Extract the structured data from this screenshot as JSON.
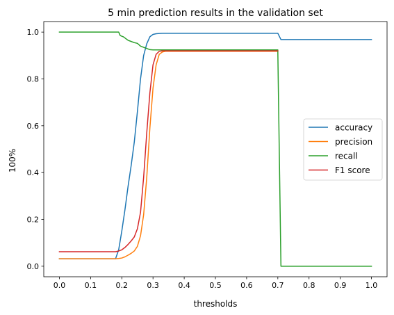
{
  "chart_data": {
    "type": "line",
    "title": "5 min prediction results in the validation set",
    "xlabel": "thresholds",
    "ylabel": "100%",
    "xlim": [
      -0.05,
      1.05
    ],
    "ylim": [
      -0.045,
      1.045
    ],
    "xticks": [
      0.0,
      0.1,
      0.2,
      0.3,
      0.4,
      0.5,
      0.6,
      0.7,
      0.8,
      0.9,
      1.0
    ],
    "xtick_labels": [
      "0.0",
      "0.1",
      "0.2",
      "0.3",
      "0.4",
      "0.5",
      "0.6",
      "0.7",
      "0.8",
      "0.9",
      "1.0"
    ],
    "yticks": [
      0.0,
      0.2,
      0.4,
      0.6,
      0.8,
      1.0
    ],
    "ytick_labels": [
      "0.0",
      "0.2",
      "0.4",
      "0.6",
      "0.8",
      "1.0"
    ],
    "grid": false,
    "legend_position": "center-right",
    "series": [
      {
        "name": "accuracy",
        "color": "#1f77b4",
        "x": [
          0.0,
          0.18,
          0.19,
          0.2,
          0.21,
          0.22,
          0.23,
          0.24,
          0.25,
          0.26,
          0.27,
          0.28,
          0.29,
          0.3,
          0.31,
          0.32,
          0.33,
          0.35,
          0.4,
          0.5,
          0.6,
          0.7,
          0.71,
          0.8,
          0.9,
          1.0
        ],
        "y": [
          0.032,
          0.032,
          0.07,
          0.15,
          0.24,
          0.34,
          0.43,
          0.53,
          0.66,
          0.8,
          0.9,
          0.95,
          0.98,
          0.99,
          0.993,
          0.994,
          0.995,
          0.995,
          0.995,
          0.995,
          0.995,
          0.995,
          0.968,
          0.968,
          0.968,
          0.968
        ]
      },
      {
        "name": "precision",
        "color": "#ff7f0e",
        "x": [
          0.0,
          0.18,
          0.19,
          0.2,
          0.21,
          0.22,
          0.23,
          0.24,
          0.25,
          0.26,
          0.27,
          0.28,
          0.29,
          0.3,
          0.31,
          0.32,
          0.33,
          0.34,
          0.35,
          0.4,
          0.5,
          0.6,
          0.7
        ],
        "y": [
          0.032,
          0.032,
          0.033,
          0.035,
          0.04,
          0.047,
          0.055,
          0.065,
          0.085,
          0.13,
          0.22,
          0.38,
          0.59,
          0.76,
          0.86,
          0.905,
          0.915,
          0.918,
          0.918,
          0.918,
          0.918,
          0.918,
          0.918
        ]
      },
      {
        "name": "recall",
        "color": "#2ca02c",
        "x": [
          0.0,
          0.19,
          0.195,
          0.205,
          0.21,
          0.215,
          0.22,
          0.23,
          0.24,
          0.25,
          0.26,
          0.27,
          0.28,
          0.29,
          0.3,
          0.4,
          0.5,
          0.6,
          0.7,
          0.7,
          0.71,
          0.8,
          0.9,
          1.0
        ],
        "y": [
          1.0,
          1.0,
          0.985,
          0.98,
          0.975,
          0.97,
          0.965,
          0.96,
          0.955,
          0.952,
          0.94,
          0.935,
          0.93,
          0.925,
          0.924,
          0.924,
          0.924,
          0.924,
          0.924,
          0.915,
          0.0,
          0.0,
          0.0,
          0.0
        ]
      },
      {
        "name": "F1 score",
        "color": "#d62728",
        "x": [
          0.0,
          0.18,
          0.19,
          0.2,
          0.21,
          0.22,
          0.23,
          0.24,
          0.25,
          0.26,
          0.27,
          0.28,
          0.29,
          0.3,
          0.31,
          0.32,
          0.33,
          0.35,
          0.4,
          0.5,
          0.6,
          0.7
        ],
        "y": [
          0.062,
          0.062,
          0.065,
          0.07,
          0.08,
          0.093,
          0.108,
          0.125,
          0.16,
          0.23,
          0.38,
          0.57,
          0.74,
          0.86,
          0.905,
          0.918,
          0.92,
          0.92,
          0.92,
          0.92,
          0.92,
          0.92
        ]
      }
    ]
  }
}
